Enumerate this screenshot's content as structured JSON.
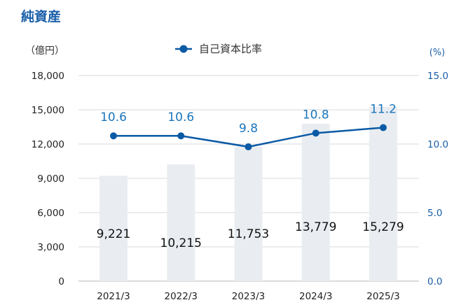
{
  "chart_data": {
    "type": "bar",
    "title": "純資産",
    "categories": [
      "2021/3",
      "2022/3",
      "2023/3",
      "2024/3",
      "2025/3"
    ],
    "series": [
      {
        "values": [
          9221,
          10215,
          11753,
          13779,
          15279
        ],
        "value_labels": [
          "9,221",
          "10,215",
          "11,753",
          "13,779",
          "15,279"
        ],
        "axis": "left",
        "kind": "bar",
        "color": "#e9edf1"
      },
      {
        "name": "自己資本比率",
        "values": [
          10.6,
          10.6,
          9.8,
          10.8,
          11.2
        ],
        "value_labels": [
          "10.6",
          "10.6",
          "9.8",
          "10.8",
          "11.2"
        ],
        "axis": "right",
        "kind": "line",
        "color": "#0a5aa6"
      }
    ],
    "y_left": {
      "label": "（億円）",
      "ylim": [
        0,
        18000
      ],
      "ticks": [
        0,
        3000,
        6000,
        9000,
        12000,
        15000,
        18000
      ],
      "tick_labels": [
        "0",
        "3,000",
        "6,000",
        "9,000",
        "12,000",
        "15,000",
        "18,000"
      ]
    },
    "y_right": {
      "label": "(%)",
      "ylim": [
        0,
        15
      ],
      "ticks": [
        0,
        5,
        10,
        15
      ],
      "tick_labels": [
        "0.0",
        "5.0",
        "10.0",
        "15.0"
      ]
    },
    "grid": "horizontal",
    "legend": "top-center"
  }
}
